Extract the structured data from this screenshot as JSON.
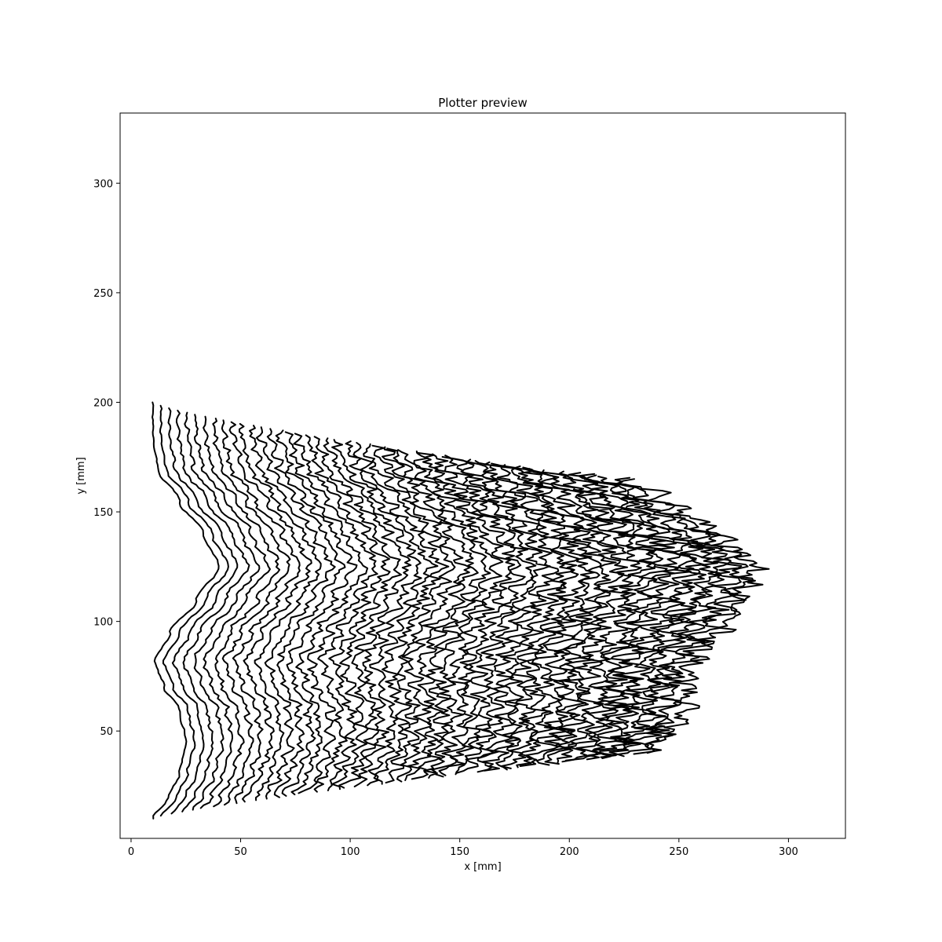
{
  "chart_data": {
    "type": "line",
    "title": "Plotter preview",
    "xlabel": "x [mm]",
    "ylabel": "y [mm]",
    "xlim": [
      -5,
      326
    ],
    "ylim": [
      1,
      332
    ],
    "xticks": [
      0,
      50,
      100,
      150,
      200,
      250,
      300
    ],
    "yticks": [
      50,
      100,
      150,
      200,
      250,
      300
    ],
    "grid": false,
    "legend": "none",
    "line_color": "#000000",
    "series_description": "Family of wavy polylines; each line runs from y=10 to y=200 following a sinusoidal base profile (x≈10 at y=10 and y=200, minima near x≈25 at y≈45 and x≈11 at y≈82, maximum near x≈40 at y≈125), with each successive line offset to the right by increasing amounts and increasing jagged noise, fanning out to x≈270–311 at y≈40–165",
    "series_count": 50,
    "base_profile": {
      "y": [
        10,
        20,
        30,
        45,
        60,
        70,
        82,
        95,
        110,
        125,
        140,
        155,
        170,
        185,
        200
      ],
      "x": [
        10,
        17,
        22,
        25,
        22,
        15,
        11,
        18,
        30,
        40,
        33,
        22,
        12,
        10,
        10
      ]
    },
    "max_right_extent": 311,
    "y_range_of_last_line": [
      40,
      165
    ]
  }
}
